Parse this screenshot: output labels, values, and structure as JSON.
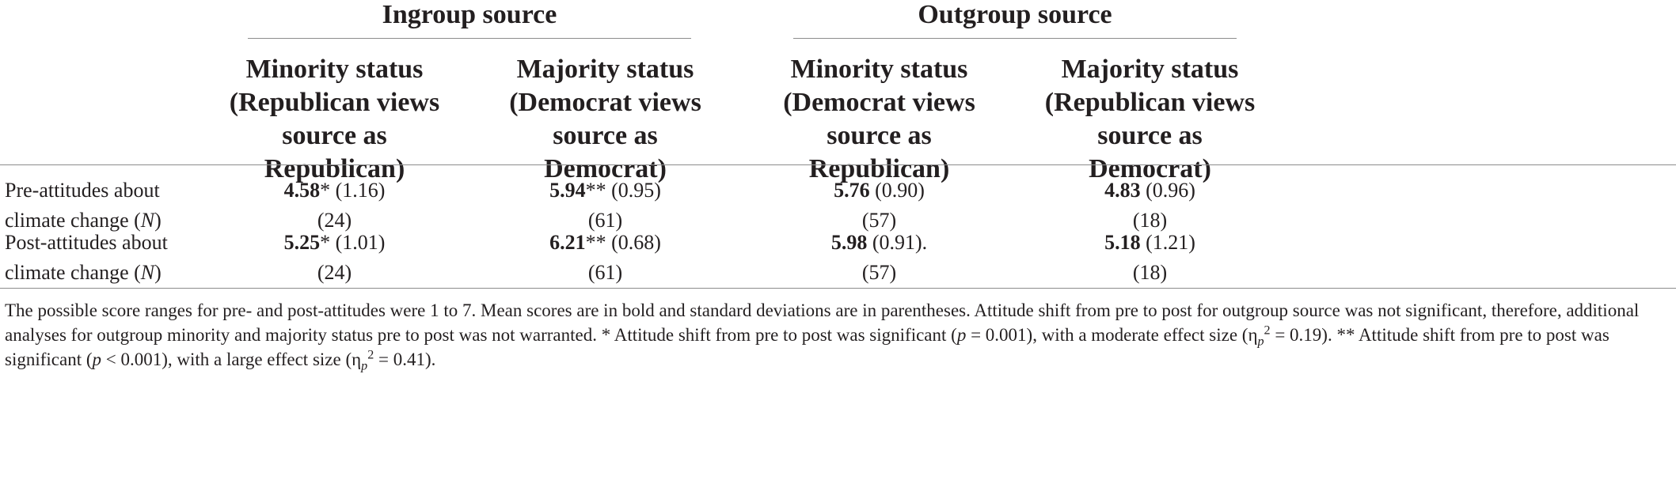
{
  "table": {
    "group_headers": [
      "Ingroup source",
      "Outgroup source"
    ],
    "column_headers": [
      [
        "Minority status",
        "(Republican views",
        "source as",
        "Republican)"
      ],
      [
        "Majority status",
        "(Democrat views",
        "source as",
        "Democrat)"
      ],
      [
        "Minority status",
        "(Democrat views",
        "source as",
        "Republican)"
      ],
      [
        "Majority status",
        "(Republican views",
        "source as",
        "Democrat)"
      ]
    ],
    "rows": [
      {
        "label_line1": "Pre-attitudes about",
        "label_line2": "climate change (",
        "label_italic": "N",
        "label_close": ")",
        "cells": [
          {
            "mean": "4.58",
            "sig": "*",
            "sd": " (1.16)",
            "n": "(24)"
          },
          {
            "mean": "5.94",
            "sig": "**",
            "sd": " (0.95)",
            "n": "(61)"
          },
          {
            "mean": "5.76",
            "sig": "",
            "sd": " (0.90)",
            "n": "(57)"
          },
          {
            "mean": "4.83",
            "sig": "",
            "sd": " (0.96)",
            "n": "(18)"
          }
        ]
      },
      {
        "label_line1": "Post-attitudes about",
        "label_line2": "climate change (",
        "label_italic": "N",
        "label_close": ")",
        "cells": [
          {
            "mean": "5.25",
            "sig": "*",
            "sd": " (1.01)",
            "n": "(24)"
          },
          {
            "mean": "6.21",
            "sig": "**",
            "sd": " (0.68)",
            "n": "(61)"
          },
          {
            "mean": "5.98",
            "sig": "",
            "sd": " (0.91).",
            "n": "(57)"
          },
          {
            "mean": "5.18",
            "sig": "",
            "sd": " (1.21)",
            "n": "(18)"
          }
        ]
      }
    ]
  },
  "footnote": {
    "text1": "The possible score ranges for pre- and post-attitudes were 1 to 7. Mean scores are in bold and standard deviations are in parentheses. Attitude shift from pre to post for outgroup source was not significant, therefore, additional analyses for outgroup minority and majority status pre to post was not warranted. * Attitude shift from pre to post was significant (",
    "p1": "p",
    "text2": " = 0.001), with a moderate effect size (η",
    "sub1": "p",
    "sup1": "2",
    "text3": " = 0.19). ** Attitude shift from pre to post was significant (",
    "p2": "p",
    "text4": " < 0.001), with a large effect size (η",
    "sub2": "p",
    "sup2": "2",
    "text5": " = 0.41)."
  }
}
